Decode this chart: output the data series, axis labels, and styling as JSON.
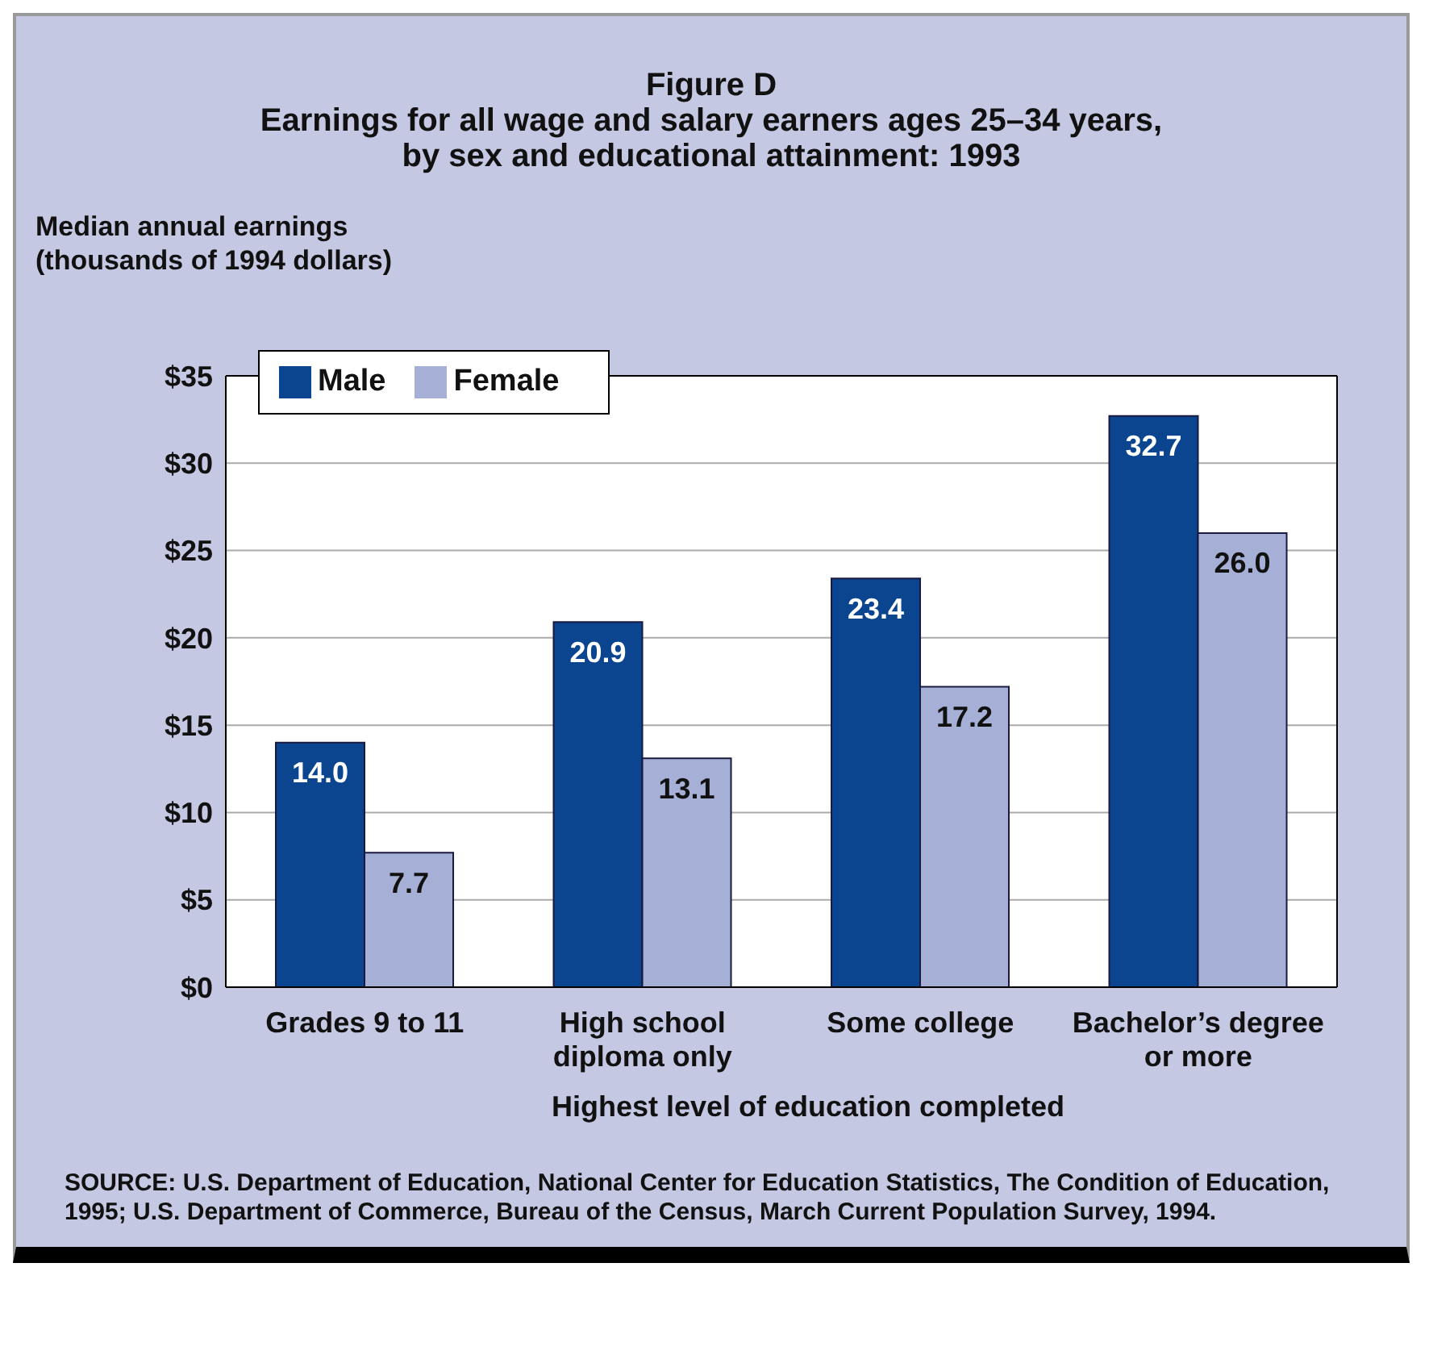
{
  "chart_data": {
    "type": "bar",
    "title": "Figure D",
    "subtitle": "Earnings for all wage and salary earners ages 25–34 years, by sex and educational attainment: 1993",
    "ylabel": "Median annual earnings (thousands of 1994 dollars)",
    "xlabel": "Highest level of education completed",
    "categories": [
      "Grades 9 to 11",
      "High school diploma only",
      "Some college",
      "Bachelor’s degree or more"
    ],
    "series": [
      {
        "name": "Male",
        "color": "#0b4590",
        "values": [
          14.0,
          20.9,
          23.4,
          32.7
        ],
        "value_labels": [
          "14.0",
          "20.9",
          "23.4",
          "32.7"
        ]
      },
      {
        "name": "Female",
        "color": "#a6b0d6",
        "values": [
          7.7,
          13.1,
          17.2,
          26.0
        ],
        "value_labels": [
          "7.7",
          "13.1",
          "17.2",
          "26.0"
        ]
      }
    ],
    "ylim": [
      0,
      35
    ],
    "yticks": [
      {
        "value": 0,
        "label": "$0"
      },
      {
        "value": 5,
        "label": "$5"
      },
      {
        "value": 10,
        "label": "$10"
      },
      {
        "value": 15,
        "label": "$15"
      },
      {
        "value": 20,
        "label": "$20"
      },
      {
        "value": 25,
        "label": "$25"
      },
      {
        "value": 30,
        "label": "$30"
      },
      {
        "value": 35,
        "label": "$35"
      }
    ],
    "grid": "y",
    "legend": "top left",
    "annotations": [
      "SOURCE: U.S. Department of Education, National Center for Education Statistics, The Condition of Education, 1995; U.S. Department of Commerce, Bureau of the Census, March Current Population Survey, 1994."
    ]
  }
}
